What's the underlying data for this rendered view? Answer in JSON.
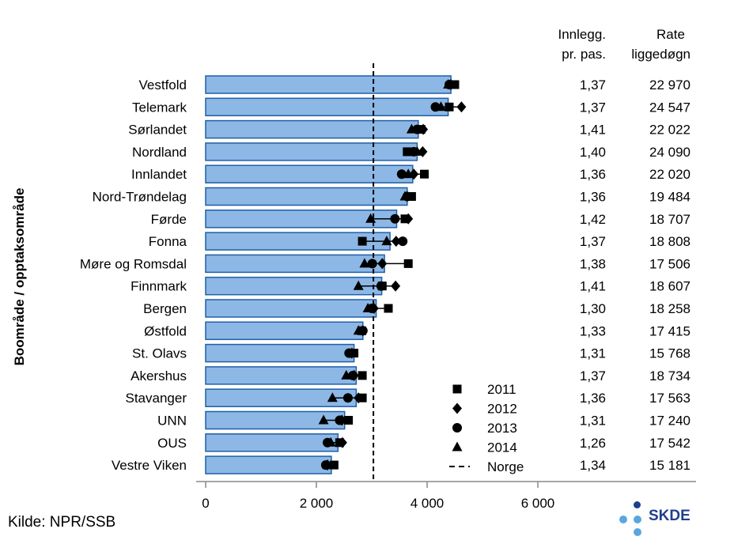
{
  "chart_data": {
    "type": "bar",
    "orientation": "horizontal",
    "ylabel": "Boområde / opptaksområde",
    "xlim": [
      0,
      6000
    ],
    "xticks": [
      0,
      2000,
      4000,
      6000
    ],
    "xtick_labels": [
      "0",
      "2 000",
      "4 000",
      "6 000"
    ],
    "reference_line": {
      "name": "Norge",
      "value": 3030,
      "style": "dashed"
    },
    "bar_color": "#8db8e6",
    "bar_edge_color": "#1f5fa8",
    "columns": [
      {
        "header": [
          "Innlegg.",
          "pr. pas."
        ]
      },
      {
        "header": [
          "Rate",
          "liggedøgn"
        ]
      }
    ],
    "legend": [
      {
        "label": "2011",
        "marker": "square"
      },
      {
        "label": "2012",
        "marker": "diamond"
      },
      {
        "label": "2013",
        "marker": "circle"
      },
      {
        "label": "2014",
        "marker": "triangle"
      },
      {
        "label": "Norge",
        "marker": "dashed-line"
      }
    ],
    "rows": [
      {
        "category": "Vestfold",
        "value": 4430,
        "innlegg": "1,37",
        "rate": "22 970",
        "y2011": 4500,
        "y2012": 4430,
        "y2013": 4400,
        "y2014": 4380
      },
      {
        "category": "Telemark",
        "value": 4380,
        "innlegg": "1,37",
        "rate": "24 547",
        "y2011": 4400,
        "y2012": 4620,
        "y2013": 4150,
        "y2014": 4250
      },
      {
        "category": "Sørlandet",
        "value": 3840,
        "innlegg": "1,41",
        "rate": "22 022",
        "y2011": 3890,
        "y2012": 3930,
        "y2013": 3820,
        "y2014": 3720
      },
      {
        "category": "Nordland",
        "value": 3820,
        "innlegg": "1,40",
        "rate": "24 090",
        "y2011": 3640,
        "y2012": 3920,
        "y2013": 3760,
        "y2014": 3820
      },
      {
        "category": "Innlandet",
        "value": 3740,
        "innlegg": "1,36",
        "rate": "22 020",
        "y2011": 3950,
        "y2012": 3760,
        "y2013": 3540,
        "y2014": 3660
      },
      {
        "category": "Nord-Trøndelag",
        "value": 3640,
        "innlegg": "1,36",
        "rate": "19 484",
        "y2011": 3720,
        "y2012": 3640,
        "y2013": 3640,
        "y2014": 3600
      },
      {
        "category": "Førde",
        "value": 3450,
        "innlegg": "1,42",
        "rate": "18 707",
        "y2011": 3600,
        "y2012": 3660,
        "y2013": 3420,
        "y2014": 2980
      },
      {
        "category": "Fonna",
        "value": 3330,
        "innlegg": "1,37",
        "rate": "18 808",
        "y2011": 2830,
        "y2012": 3440,
        "y2013": 3560,
        "y2014": 3270
      },
      {
        "category": "Møre og Romsdal",
        "value": 3230,
        "innlegg": "1,38",
        "rate": "17 506",
        "y2011": 3660,
        "y2012": 3190,
        "y2013": 3010,
        "y2014": 2870
      },
      {
        "category": "Finnmark",
        "value": 3180,
        "innlegg": "1,41",
        "rate": "18 607",
        "y2011": 3190,
        "y2012": 3430,
        "y2013": 3170,
        "y2014": 2760
      },
      {
        "category": "Bergen",
        "value": 3080,
        "innlegg": "1,30",
        "rate": "18 258",
        "y2011": 3300,
        "y2012": 3040,
        "y2013": 3000,
        "y2014": 2930
      },
      {
        "category": "Østfold",
        "value": 2840,
        "innlegg": "1,33",
        "rate": "17 415",
        "y2011": 2820,
        "y2012": 2840,
        "y2013": 2840,
        "y2014": 2760
      },
      {
        "category": "St. Olavs",
        "value": 2680,
        "innlegg": "1,31",
        "rate": "15 768",
        "y2011": 2680,
        "y2012": 2640,
        "y2013": 2590,
        "y2014": 2640
      },
      {
        "category": "Akershus",
        "value": 2720,
        "innlegg": "1,37",
        "rate": "18 734",
        "y2011": 2830,
        "y2012": 2680,
        "y2013": 2660,
        "y2014": 2540
      },
      {
        "category": "Stavanger",
        "value": 2720,
        "innlegg": "1,36",
        "rate": "17 563",
        "y2011": 2830,
        "y2012": 2760,
        "y2013": 2570,
        "y2014": 2290
      },
      {
        "category": "UNN",
        "value": 2510,
        "innlegg": "1,31",
        "rate": "17 240",
        "y2011": 2580,
        "y2012": 2460,
        "y2013": 2420,
        "y2014": 2130
      },
      {
        "category": "OUS",
        "value": 2390,
        "innlegg": "1,26",
        "rate": "17 542",
        "y2011": 2420,
        "y2012": 2470,
        "y2013": 2200,
        "y2014": 2260
      },
      {
        "category": "Vestre Viken",
        "value": 2270,
        "innlegg": "1,34",
        "rate": "15 181",
        "y2011": 2320,
        "y2012": 2200,
        "y2013": 2170,
        "y2014": 2200
      }
    ]
  },
  "source_text": "Kilde: NPR/SSB",
  "logo": {
    "text": "SKDE",
    "dot_dark": "#1f3f8c",
    "dot_light": "#5aa6e0"
  }
}
